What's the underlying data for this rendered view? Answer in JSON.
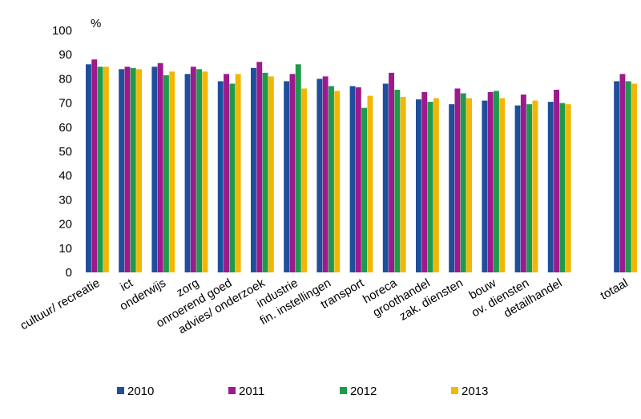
{
  "chart_data": {
    "type": "bar",
    "title": "",
    "xlabel": "",
    "ylabel": "%",
    "ylim": [
      0,
      100
    ],
    "yticks": [
      0,
      10,
      20,
      30,
      40,
      50,
      60,
      70,
      80,
      90,
      100
    ],
    "grid": false,
    "legend_position": "bottom",
    "categories": [
      "cultuur/ recreatie",
      "ict",
      "onderwijs",
      "zorg",
      "onroerend goed",
      "advies/ onderzoek",
      "industrie",
      "fin. instellingen",
      "transport",
      "horeca",
      "groothandel",
      "zak. diensten",
      "bouw",
      "ov. diensten",
      "detailhandel",
      "",
      "totaal"
    ],
    "series": [
      {
        "name": "2010",
        "color": "#1f4e9c",
        "values": [
          86,
          84,
          85,
          82,
          79,
          84.5,
          79,
          80,
          77,
          78,
          71.5,
          69.5,
          71,
          69,
          70.5,
          null,
          79
        ]
      },
      {
        "name": "2011",
        "color": "#9c1a8c",
        "values": [
          88,
          85,
          86.5,
          85,
          82,
          87,
          82,
          81,
          76.5,
          82.5,
          74.5,
          76,
          74.5,
          73.5,
          75.5,
          null,
          82
        ]
      },
      {
        "name": "2012",
        "color": "#1e9a4a",
        "values": [
          85,
          84.5,
          81.5,
          84,
          78,
          82.5,
          86,
          77,
          68,
          75.5,
          70.5,
          74,
          75,
          69.5,
          70,
          null,
          79
        ]
      },
      {
        "name": "2013",
        "color": "#f2b705",
        "values": [
          85,
          84,
          83,
          83,
          82,
          81,
          76,
          75,
          73,
          72.5,
          72,
          72,
          72,
          71,
          69.5,
          null,
          78
        ]
      }
    ]
  }
}
